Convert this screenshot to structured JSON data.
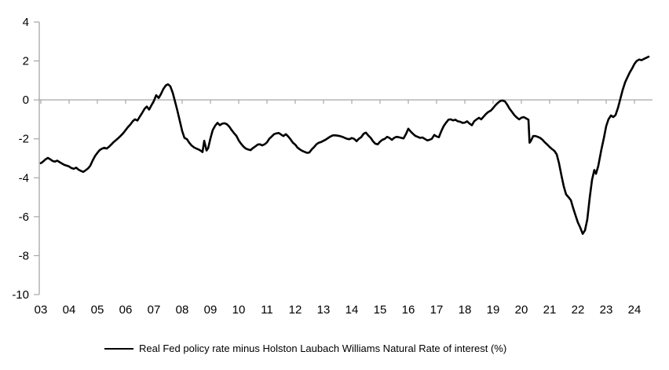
{
  "chart_data": {
    "type": "line",
    "title": "",
    "background": "#ffffff",
    "legend": {
      "position": "bottom-center",
      "entries": [
        {
          "label": "Real Fed policy rate minus Holston Laubach Williams Natural Rate of interest (%)",
          "color": "#000000"
        }
      ]
    },
    "x_axis": {
      "label": "",
      "range": [
        2003.0,
        2024.65
      ],
      "tick_years": [
        2003,
        2004,
        2005,
        2006,
        2007,
        2008,
        2009,
        2010,
        2011,
        2012,
        2013,
        2014,
        2015,
        2016,
        2017,
        2018,
        2019,
        2020,
        2021,
        2022,
        2023,
        2024
      ],
      "tick_labels": [
        "03",
        "04",
        "05",
        "06",
        "07",
        "08",
        "09",
        "10",
        "11",
        "12",
        "13",
        "14",
        "15",
        "16",
        "17",
        "18",
        "19",
        "20",
        "21",
        "22",
        "23",
        "24"
      ]
    },
    "y_axis": {
      "label": "",
      "range": [
        -10,
        4
      ],
      "ticks": [
        4,
        2,
        0,
        -2,
        -4,
        -6,
        -8,
        -10
      ],
      "tick_labels": [
        "4",
        "2",
        "0",
        "-2",
        "-4",
        "-6",
        "-8",
        "-10"
      ]
    },
    "grid": "zero-line-only",
    "zero_line": true,
    "colors": {
      "line": "#000000",
      "axis": "#a6a6a6",
      "tick_text": "#000000"
    },
    "series": [
      {
        "name": "Real Fed policy rate minus Holston Laubach Williams Natural Rate of interest (%)",
        "color": "#000000",
        "points": [
          [
            2003.0,
            -3.25
          ],
          [
            2003.08,
            -3.17
          ],
          [
            2003.17,
            -3.05
          ],
          [
            2003.25,
            -2.98
          ],
          [
            2003.33,
            -3.05
          ],
          [
            2003.42,
            -3.14
          ],
          [
            2003.5,
            -3.17
          ],
          [
            2003.58,
            -3.12
          ],
          [
            2003.67,
            -3.2
          ],
          [
            2003.75,
            -3.27
          ],
          [
            2003.83,
            -3.34
          ],
          [
            2003.92,
            -3.38
          ],
          [
            2004.0,
            -3.42
          ],
          [
            2004.08,
            -3.5
          ],
          [
            2004.17,
            -3.54
          ],
          [
            2004.25,
            -3.48
          ],
          [
            2004.33,
            -3.58
          ],
          [
            2004.42,
            -3.65
          ],
          [
            2004.5,
            -3.7
          ],
          [
            2004.58,
            -3.62
          ],
          [
            2004.67,
            -3.52
          ],
          [
            2004.75,
            -3.38
          ],
          [
            2004.83,
            -3.12
          ],
          [
            2004.92,
            -2.88
          ],
          [
            2005.0,
            -2.72
          ],
          [
            2005.08,
            -2.58
          ],
          [
            2005.17,
            -2.5
          ],
          [
            2005.25,
            -2.46
          ],
          [
            2005.33,
            -2.5
          ],
          [
            2005.42,
            -2.4
          ],
          [
            2005.5,
            -2.28
          ],
          [
            2005.58,
            -2.16
          ],
          [
            2005.67,
            -2.05
          ],
          [
            2005.75,
            -1.95
          ],
          [
            2005.83,
            -1.84
          ],
          [
            2005.92,
            -1.7
          ],
          [
            2006.0,
            -1.55
          ],
          [
            2006.08,
            -1.4
          ],
          [
            2006.17,
            -1.26
          ],
          [
            2006.25,
            -1.1
          ],
          [
            2006.33,
            -1.0
          ],
          [
            2006.42,
            -1.06
          ],
          [
            2006.5,
            -0.86
          ],
          [
            2006.58,
            -0.68
          ],
          [
            2006.67,
            -0.46
          ],
          [
            2006.75,
            -0.34
          ],
          [
            2006.83,
            -0.5
          ],
          [
            2006.92,
            -0.26
          ],
          [
            2007.0,
            -0.05
          ],
          [
            2007.08,
            0.24
          ],
          [
            2007.17,
            0.1
          ],
          [
            2007.25,
            0.3
          ],
          [
            2007.33,
            0.55
          ],
          [
            2007.42,
            0.74
          ],
          [
            2007.5,
            0.8
          ],
          [
            2007.58,
            0.7
          ],
          [
            2007.67,
            0.35
          ],
          [
            2007.75,
            -0.1
          ],
          [
            2007.83,
            -0.55
          ],
          [
            2007.92,
            -1.1
          ],
          [
            2008.0,
            -1.6
          ],
          [
            2008.08,
            -1.95
          ],
          [
            2008.17,
            -2.02
          ],
          [
            2008.25,
            -2.2
          ],
          [
            2008.33,
            -2.34
          ],
          [
            2008.42,
            -2.44
          ],
          [
            2008.5,
            -2.5
          ],
          [
            2008.58,
            -2.55
          ],
          [
            2008.67,
            -2.62
          ],
          [
            2008.72,
            -2.68
          ],
          [
            2008.78,
            -2.1
          ],
          [
            2008.86,
            -2.6
          ],
          [
            2008.92,
            -2.48
          ],
          [
            2009.0,
            -1.98
          ],
          [
            2009.08,
            -1.55
          ],
          [
            2009.17,
            -1.32
          ],
          [
            2009.25,
            -1.18
          ],
          [
            2009.33,
            -1.3
          ],
          [
            2009.42,
            -1.22
          ],
          [
            2009.5,
            -1.2
          ],
          [
            2009.58,
            -1.25
          ],
          [
            2009.67,
            -1.38
          ],
          [
            2009.75,
            -1.55
          ],
          [
            2009.83,
            -1.7
          ],
          [
            2009.92,
            -1.85
          ],
          [
            2010.0,
            -2.08
          ],
          [
            2010.08,
            -2.25
          ],
          [
            2010.17,
            -2.4
          ],
          [
            2010.25,
            -2.5
          ],
          [
            2010.33,
            -2.55
          ],
          [
            2010.42,
            -2.58
          ],
          [
            2010.5,
            -2.48
          ],
          [
            2010.58,
            -2.4
          ],
          [
            2010.67,
            -2.3
          ],
          [
            2010.75,
            -2.28
          ],
          [
            2010.83,
            -2.34
          ],
          [
            2010.92,
            -2.28
          ],
          [
            2011.0,
            -2.18
          ],
          [
            2011.08,
            -2.0
          ],
          [
            2011.17,
            -1.88
          ],
          [
            2011.25,
            -1.76
          ],
          [
            2011.33,
            -1.72
          ],
          [
            2011.42,
            -1.7
          ],
          [
            2011.5,
            -1.78
          ],
          [
            2011.58,
            -1.86
          ],
          [
            2011.67,
            -1.76
          ],
          [
            2011.75,
            -1.88
          ],
          [
            2011.83,
            -2.02
          ],
          [
            2011.92,
            -2.2
          ],
          [
            2012.0,
            -2.3
          ],
          [
            2012.08,
            -2.45
          ],
          [
            2012.17,
            -2.55
          ],
          [
            2012.25,
            -2.62
          ],
          [
            2012.33,
            -2.67
          ],
          [
            2012.42,
            -2.72
          ],
          [
            2012.5,
            -2.7
          ],
          [
            2012.58,
            -2.55
          ],
          [
            2012.67,
            -2.42
          ],
          [
            2012.75,
            -2.28
          ],
          [
            2012.83,
            -2.2
          ],
          [
            2012.92,
            -2.16
          ],
          [
            2013.0,
            -2.1
          ],
          [
            2013.08,
            -2.04
          ],
          [
            2013.17,
            -1.95
          ],
          [
            2013.25,
            -1.88
          ],
          [
            2013.33,
            -1.82
          ],
          [
            2013.42,
            -1.82
          ],
          [
            2013.5,
            -1.84
          ],
          [
            2013.58,
            -1.86
          ],
          [
            2013.67,
            -1.9
          ],
          [
            2013.75,
            -1.95
          ],
          [
            2013.83,
            -2.0
          ],
          [
            2013.92,
            -2.02
          ],
          [
            2014.0,
            -1.96
          ],
          [
            2014.08,
            -2.0
          ],
          [
            2014.17,
            -2.12
          ],
          [
            2014.25,
            -2.0
          ],
          [
            2014.33,
            -1.92
          ],
          [
            2014.42,
            -1.74
          ],
          [
            2014.5,
            -1.68
          ],
          [
            2014.58,
            -1.82
          ],
          [
            2014.67,
            -1.95
          ],
          [
            2014.75,
            -2.12
          ],
          [
            2014.83,
            -2.25
          ],
          [
            2014.92,
            -2.28
          ],
          [
            2015.0,
            -2.15
          ],
          [
            2015.08,
            -2.05
          ],
          [
            2015.17,
            -2.0
          ],
          [
            2015.25,
            -1.9
          ],
          [
            2015.33,
            -1.95
          ],
          [
            2015.42,
            -2.05
          ],
          [
            2015.5,
            -1.95
          ],
          [
            2015.58,
            -1.9
          ],
          [
            2015.67,
            -1.92
          ],
          [
            2015.75,
            -1.95
          ],
          [
            2015.83,
            -1.98
          ],
          [
            2015.92,
            -1.75
          ],
          [
            2016.0,
            -1.48
          ],
          [
            2016.08,
            -1.62
          ],
          [
            2016.17,
            -1.75
          ],
          [
            2016.25,
            -1.85
          ],
          [
            2016.33,
            -1.9
          ],
          [
            2016.42,
            -1.95
          ],
          [
            2016.5,
            -1.93
          ],
          [
            2016.58,
            -2.0
          ],
          [
            2016.67,
            -2.08
          ],
          [
            2016.75,
            -2.05
          ],
          [
            2016.83,
            -2.0
          ],
          [
            2016.92,
            -1.8
          ],
          [
            2017.0,
            -1.88
          ],
          [
            2017.08,
            -1.92
          ],
          [
            2017.17,
            -1.6
          ],
          [
            2017.25,
            -1.35
          ],
          [
            2017.33,
            -1.18
          ],
          [
            2017.42,
            -1.02
          ],
          [
            2017.5,
            -1.0
          ],
          [
            2017.58,
            -1.05
          ],
          [
            2017.67,
            -1.02
          ],
          [
            2017.75,
            -1.1
          ],
          [
            2017.83,
            -1.12
          ],
          [
            2017.92,
            -1.18
          ],
          [
            2018.0,
            -1.17
          ],
          [
            2018.08,
            -1.1
          ],
          [
            2018.17,
            -1.22
          ],
          [
            2018.25,
            -1.3
          ],
          [
            2018.33,
            -1.1
          ],
          [
            2018.42,
            -1.0
          ],
          [
            2018.5,
            -0.92
          ],
          [
            2018.58,
            -1.0
          ],
          [
            2018.67,
            -0.85
          ],
          [
            2018.75,
            -0.72
          ],
          [
            2018.83,
            -0.62
          ],
          [
            2018.92,
            -0.55
          ],
          [
            2019.0,
            -0.42
          ],
          [
            2019.08,
            -0.28
          ],
          [
            2019.17,
            -0.15
          ],
          [
            2019.25,
            -0.06
          ],
          [
            2019.33,
            -0.03
          ],
          [
            2019.42,
            -0.08
          ],
          [
            2019.5,
            -0.25
          ],
          [
            2019.58,
            -0.45
          ],
          [
            2019.67,
            -0.62
          ],
          [
            2019.75,
            -0.78
          ],
          [
            2019.83,
            -0.9
          ],
          [
            2019.92,
            -1.0
          ],
          [
            2020.0,
            -0.92
          ],
          [
            2020.08,
            -0.88
          ],
          [
            2020.17,
            -0.95
          ],
          [
            2020.25,
            -1.02
          ],
          [
            2020.29,
            -2.2
          ],
          [
            2020.33,
            -2.12
          ],
          [
            2020.42,
            -1.86
          ],
          [
            2020.5,
            -1.86
          ],
          [
            2020.58,
            -1.9
          ],
          [
            2020.67,
            -1.96
          ],
          [
            2020.75,
            -2.05
          ],
          [
            2020.83,
            -2.18
          ],
          [
            2020.92,
            -2.3
          ],
          [
            2021.0,
            -2.42
          ],
          [
            2021.08,
            -2.52
          ],
          [
            2021.17,
            -2.62
          ],
          [
            2021.25,
            -2.8
          ],
          [
            2021.33,
            -3.25
          ],
          [
            2021.42,
            -3.9
          ],
          [
            2021.5,
            -4.45
          ],
          [
            2021.58,
            -4.85
          ],
          [
            2021.67,
            -5.0
          ],
          [
            2021.75,
            -5.15
          ],
          [
            2021.83,
            -5.55
          ],
          [
            2021.92,
            -5.95
          ],
          [
            2022.0,
            -6.3
          ],
          [
            2022.08,
            -6.55
          ],
          [
            2022.17,
            -6.88
          ],
          [
            2022.25,
            -6.7
          ],
          [
            2022.33,
            -6.15
          ],
          [
            2022.42,
            -5.0
          ],
          [
            2022.5,
            -4.1
          ],
          [
            2022.58,
            -3.6
          ],
          [
            2022.64,
            -3.8
          ],
          [
            2022.72,
            -3.4
          ],
          [
            2022.83,
            -2.55
          ],
          [
            2022.92,
            -1.95
          ],
          [
            2023.0,
            -1.35
          ],
          [
            2023.08,
            -1.0
          ],
          [
            2023.17,
            -0.8
          ],
          [
            2023.25,
            -0.88
          ],
          [
            2023.33,
            -0.78
          ],
          [
            2023.42,
            -0.4
          ],
          [
            2023.5,
            0.05
          ],
          [
            2023.58,
            0.5
          ],
          [
            2023.67,
            0.9
          ],
          [
            2023.75,
            1.15
          ],
          [
            2023.83,
            1.4
          ],
          [
            2023.92,
            1.62
          ],
          [
            2024.0,
            1.85
          ],
          [
            2024.08,
            2.0
          ],
          [
            2024.17,
            2.07
          ],
          [
            2024.25,
            2.04
          ],
          [
            2024.33,
            2.1
          ],
          [
            2024.42,
            2.16
          ],
          [
            2024.5,
            2.22
          ]
        ]
      }
    ]
  }
}
